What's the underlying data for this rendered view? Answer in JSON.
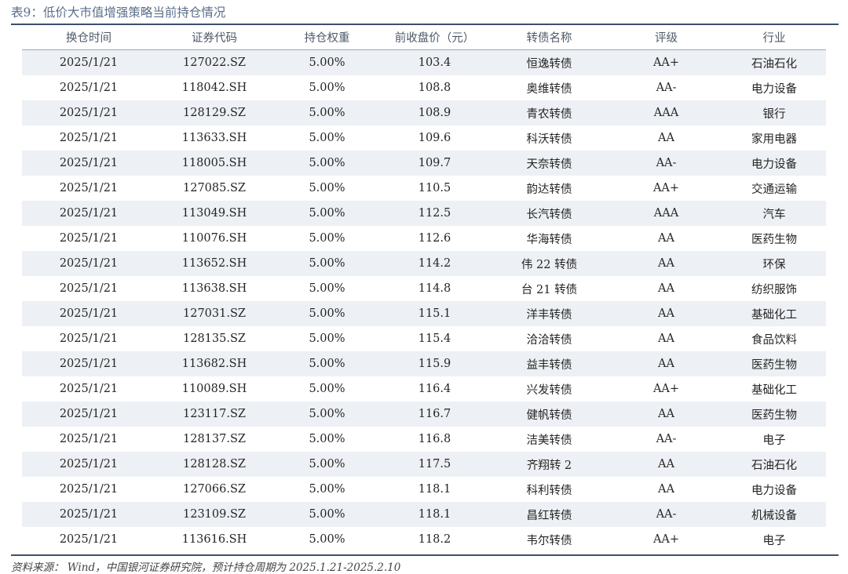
{
  "title": "表9：低价大市值增强策略当前持仓情况",
  "columns": [
    "换仓时间",
    "证券代码",
    "持仓权重",
    "前收盘价（元）",
    "转债名称",
    "评级",
    "行业"
  ],
  "rows": [
    [
      "2025/1/21",
      "127022.SZ",
      "5.00%",
      "103.4",
      "恒逸转债",
      "AA+",
      "石油石化"
    ],
    [
      "2025/1/21",
      "118042.SH",
      "5.00%",
      "108.8",
      "奥维转债",
      "AA-",
      "电力设备"
    ],
    [
      "2025/1/21",
      "128129.SZ",
      "5.00%",
      "108.9",
      "青农转债",
      "AAA",
      "银行"
    ],
    [
      "2025/1/21",
      "113633.SH",
      "5.00%",
      "109.6",
      "科沃转债",
      "AA",
      "家用电器"
    ],
    [
      "2025/1/21",
      "118005.SH",
      "5.00%",
      "109.7",
      "天奈转债",
      "AA-",
      "电力设备"
    ],
    [
      "2025/1/21",
      "127085.SZ",
      "5.00%",
      "110.5",
      "韵达转债",
      "AA+",
      "交通运输"
    ],
    [
      "2025/1/21",
      "113049.SH",
      "5.00%",
      "112.5",
      "长汽转债",
      "AAA",
      "汽车"
    ],
    [
      "2025/1/21",
      "110076.SH",
      "5.00%",
      "112.6",
      "华海转债",
      "AA",
      "医药生物"
    ],
    [
      "2025/1/21",
      "113652.SH",
      "5.00%",
      "114.2",
      "伟 22 转债",
      "AA",
      "环保"
    ],
    [
      "2025/1/21",
      "113638.SH",
      "5.00%",
      "114.8",
      "台 21 转债",
      "AA",
      "纺织服饰"
    ],
    [
      "2025/1/21",
      "127031.SZ",
      "5.00%",
      "115.1",
      "洋丰转债",
      "AA",
      "基础化工"
    ],
    [
      "2025/1/21",
      "128135.SZ",
      "5.00%",
      "115.4",
      "洽洽转债",
      "AA",
      "食品饮料"
    ],
    [
      "2025/1/21",
      "113682.SH",
      "5.00%",
      "115.9",
      "益丰转债",
      "AA",
      "医药生物"
    ],
    [
      "2025/1/21",
      "110089.SH",
      "5.00%",
      "116.4",
      "兴发转债",
      "AA+",
      "基础化工"
    ],
    [
      "2025/1/21",
      "123117.SZ",
      "5.00%",
      "116.7",
      "健帆转债",
      "AA",
      "医药生物"
    ],
    [
      "2025/1/21",
      "128137.SZ",
      "5.00%",
      "116.8",
      "洁美转债",
      "AA-",
      "电子"
    ],
    [
      "2025/1/21",
      "128128.SZ",
      "5.00%",
      "117.5",
      "齐翔转 2",
      "AA",
      "石油石化"
    ],
    [
      "2025/1/21",
      "127066.SZ",
      "5.00%",
      "118.1",
      "科利转债",
      "AA",
      "电力设备"
    ],
    [
      "2025/1/21",
      "123109.SZ",
      "5.00%",
      "118.1",
      "昌红转债",
      "AA-",
      "机械设备"
    ],
    [
      "2025/1/21",
      "113616.SH",
      "5.00%",
      "118.2",
      "韦尔转债",
      "AA+",
      "电子"
    ]
  ],
  "footer": "资料来源： Wind，中国银河证券研究院，预计持仓周期为 2025.1.21-2025.2.10"
}
